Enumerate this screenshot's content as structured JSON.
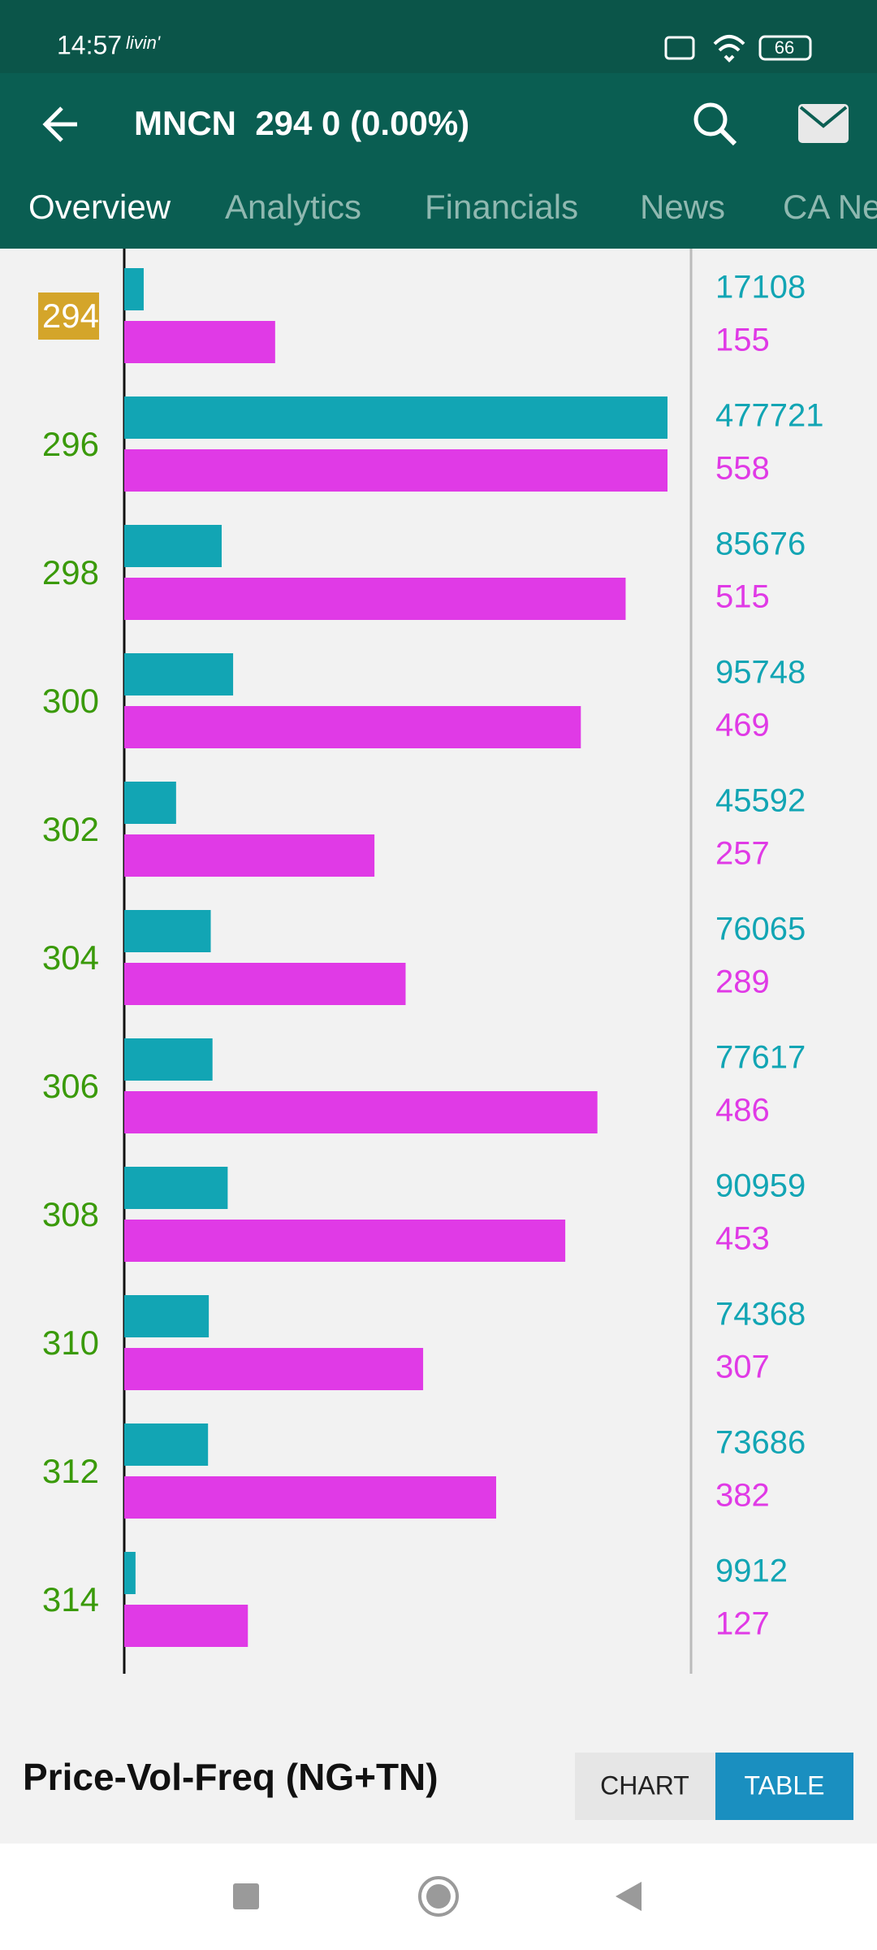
{
  "status_bar": {
    "time": "14:57",
    "brand": "livin'",
    "battery": "66"
  },
  "app_bar": {
    "title": "MNCN  294 0 (0.00%)"
  },
  "tabs": [
    "Overview",
    "Analytics",
    "Financials",
    "News",
    "CA News"
  ],
  "chart_data": {
    "type": "bar",
    "orientation": "horizontal",
    "categories": [
      "294",
      "296",
      "298",
      "300",
      "302",
      "304",
      "306",
      "308",
      "310",
      "312",
      "314"
    ],
    "highlight": 0,
    "series": [
      {
        "name": "Volume",
        "color": "#12a5b4",
        "values": [
          17108,
          477721,
          85676,
          95748,
          45592,
          76065,
          77617,
          90959,
          74368,
          73686,
          9912
        ]
      },
      {
        "name": "Frequency",
        "color": "#e03ae6",
        "values": [
          155,
          558,
          515,
          469,
          257,
          289,
          486,
          453,
          307,
          382,
          127
        ]
      }
    ]
  },
  "footer": {
    "title": "Price-Vol-Freq (NG+TN)",
    "buttons": [
      "CHART",
      "TABLE"
    ]
  }
}
